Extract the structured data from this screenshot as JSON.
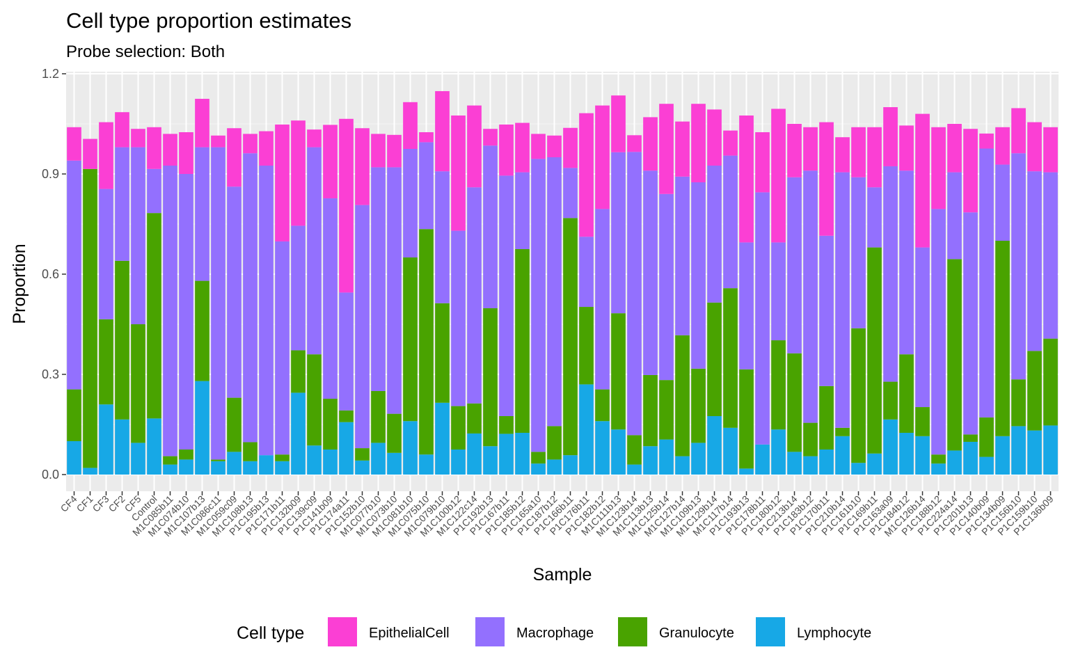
{
  "chart_data": {
    "type": "bar",
    "stacked": true,
    "title": "Cell type proportion estimates",
    "subtitle": "Probe selection: Both",
    "xlabel": "Sample",
    "ylabel": "Proportion",
    "ylim": [
      -0.05,
      1.2
    ],
    "yticks": [
      "0.0",
      "0.3",
      "0.6",
      "0.9",
      "1.2"
    ],
    "ytick_values": [
      0,
      0.3,
      0.6,
      0.9,
      1.2
    ],
    "grid": true,
    "legend": {
      "title": "Cell type",
      "position": "bottom"
    },
    "categories": [
      "CF4",
      "CF1",
      "CF3",
      "CF2",
      "CF5",
      "Control",
      "M1C085b11",
      "M1C074b10",
      "M1C107b13",
      "M1C086c11",
      "M1C059c09",
      "M1C108b13",
      "P1C195b13",
      "P1C171b11",
      "P1C132b09",
      "P1C139c09",
      "P1C141b09",
      "P1C174a11",
      "P1C152b10",
      "M1C077b10",
      "M1C073b10",
      "M1C081b10",
      "M1C075b10",
      "M1C079b10",
      "M1C100b12",
      "M1C122c14",
      "P1C192b13",
      "P1C167b11",
      "P1C185b12",
      "P1C165a10",
      "P1C187b12",
      "P1C166b11",
      "P1C176b11",
      "P1C182b12",
      "M1C111b13",
      "M1C123b14",
      "M1C113b13",
      "M1C125b14",
      "M1C127b14",
      "M1C109b13",
      "M1C129b14",
      "M1C117b14",
      "P1C193b13",
      "P1C178b11",
      "P1C180b12",
      "P1C213b14",
      "P1C183b12",
      "P1C170b11",
      "P1C210b14",
      "P1C161b10",
      "P1C169b11",
      "P1C163a09",
      "P1C184b12",
      "M1C126b14",
      "P1C188b12",
      "P1C224a14",
      "P1C201b13",
      "P1C140b09",
      "P1C134b09",
      "P1C156b10",
      "P1C159b10",
      "P1C136b09"
    ],
    "series": [
      {
        "name": "Lymphocyte",
        "color": "#17a8e6",
        "values": [
          0.1,
          0.02,
          0.21,
          0.165,
          0.095,
          0.168,
          0.03,
          0.045,
          0.28,
          0.04,
          0.068,
          0.04,
          0.058,
          0.04,
          0.245,
          0.087,
          0.075,
          0.157,
          0.042,
          0.095,
          0.065,
          0.16,
          0.06,
          0.215,
          0.075,
          0.123,
          0.085,
          0.122,
          0.125,
          0.033,
          0.045,
          0.058,
          0.27,
          0.16,
          0.135,
          0.03,
          0.085,
          0.105,
          0.055,
          0.095,
          0.175,
          0.14,
          0.018,
          0.09,
          0.135,
          0.068,
          0.055,
          0.075,
          0.115,
          0.035,
          0.063,
          0.165,
          0.125,
          0.115,
          0.033,
          0.072,
          0.098,
          0.053,
          0.115,
          0.145,
          0.132,
          0.147
        ]
      },
      {
        "name": "Granulocyte",
        "color": "#49a300",
        "values": [
          0.155,
          0.895,
          0.255,
          0.475,
          0.355,
          0.615,
          0.025,
          0.03,
          0.3,
          0.005,
          0.162,
          0.057,
          0.0,
          0.02,
          0.127,
          0.273,
          0.152,
          0.035,
          0.037,
          0.155,
          0.117,
          0.49,
          0.675,
          0.298,
          0.13,
          0.09,
          0.413,
          0.053,
          0.55,
          0.035,
          0.1,
          0.71,
          0.232,
          0.095,
          0.348,
          0.088,
          0.213,
          0.178,
          0.362,
          0.222,
          0.34,
          0.418,
          0.297,
          0.0,
          0.267,
          0.295,
          0.1,
          0.19,
          0.025,
          0.403,
          0.617,
          0.113,
          0.235,
          0.087,
          0.027,
          0.573,
          0.022,
          0.118,
          0.585,
          0.14,
          0.238,
          0.26
        ]
      },
      {
        "name": "Macrophage",
        "color": "#9370fe",
        "values": [
          0.685,
          0.0,
          0.39,
          0.34,
          0.53,
          0.132,
          0.87,
          0.825,
          0.4,
          0.935,
          0.632,
          0.865,
          0.867,
          0.638,
          0.373,
          0.62,
          0.6,
          0.353,
          0.728,
          0.67,
          0.738,
          0.325,
          0.26,
          0.395,
          0.525,
          0.647,
          0.487,
          0.72,
          0.23,
          0.877,
          0.805,
          0.15,
          0.21,
          0.54,
          0.482,
          0.848,
          0.612,
          0.557,
          0.475,
          0.558,
          0.41,
          0.397,
          0.38,
          0.755,
          0.293,
          0.527,
          0.755,
          0.45,
          0.765,
          0.452,
          0.18,
          0.645,
          0.55,
          0.478,
          0.735,
          0.26,
          0.665,
          0.805,
          0.228,
          0.677,
          0.538,
          0.498
        ]
      },
      {
        "name": "EpithelialCell",
        "color": "#fb3fd4",
        "values": [
          0.1,
          0.09,
          0.2,
          0.105,
          0.055,
          0.125,
          0.095,
          0.125,
          0.145,
          0.035,
          0.175,
          0.058,
          0.103,
          0.35,
          0.315,
          0.053,
          0.22,
          0.52,
          0.23,
          0.1,
          0.097,
          0.14,
          0.03,
          0.24,
          0.345,
          0.245,
          0.05,
          0.153,
          0.148,
          0.075,
          0.065,
          0.12,
          0.37,
          0.31,
          0.17,
          0.05,
          0.16,
          0.27,
          0.165,
          0.235,
          0.168,
          0.075,
          0.38,
          0.18,
          0.4,
          0.16,
          0.13,
          0.34,
          0.105,
          0.15,
          0.18,
          0.177,
          0.135,
          0.4,
          0.245,
          0.145,
          0.25,
          0.045,
          0.112,
          0.135,
          0.147,
          0.135
        ]
      }
    ]
  }
}
